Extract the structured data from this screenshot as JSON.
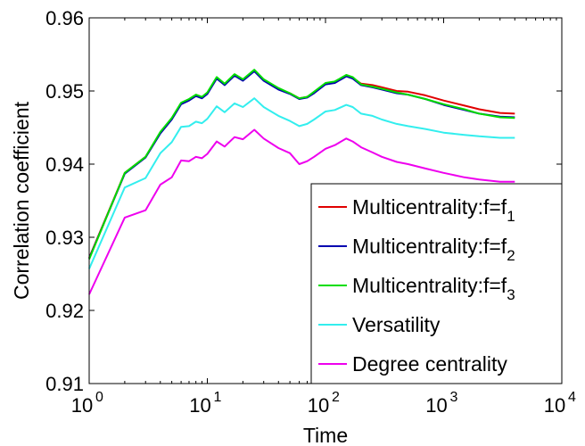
{
  "chart_data": {
    "type": "line",
    "title": "",
    "xlabel": "Time",
    "ylabel": "Correlation coefficient",
    "x_scale": "log",
    "xlim": [
      1,
      10000
    ],
    "ylim": [
      0.91,
      0.96
    ],
    "x_ticks": [
      {
        "value": 1,
        "base": "10",
        "exp": "0"
      },
      {
        "value": 10,
        "base": "10",
        "exp": "1"
      },
      {
        "value": 100,
        "base": "10",
        "exp": "2"
      },
      {
        "value": 1000,
        "base": "10",
        "exp": "3"
      },
      {
        "value": 10000,
        "base": "10",
        "exp": "4"
      }
    ],
    "y_ticks": [
      "0.91",
      "0.92",
      "0.93",
      "0.94",
      "0.95",
      "0.96"
    ],
    "grid": false,
    "legend_position": "bottom-right",
    "series": [
      {
        "name": "Multicentrality:f=f",
        "subscript": "1",
        "color": "#e00000",
        "points": [
          [
            1,
            0.9272
          ],
          [
            2,
            0.9388
          ],
          [
            3,
            0.941
          ],
          [
            4,
            0.9443
          ],
          [
            5,
            0.9462
          ],
          [
            6,
            0.9483
          ],
          [
            7,
            0.9488
          ],
          [
            8,
            0.9494
          ],
          [
            9,
            0.9491
          ],
          [
            10,
            0.9497
          ],
          [
            12,
            0.9518
          ],
          [
            14,
            0.9509
          ],
          [
            17,
            0.9522
          ],
          [
            20,
            0.9515
          ],
          [
            25,
            0.9528
          ],
          [
            30,
            0.9515
          ],
          [
            40,
            0.9503
          ],
          [
            50,
            0.9497
          ],
          [
            60,
            0.949
          ],
          [
            70,
            0.9492
          ],
          [
            80,
            0.9498
          ],
          [
            100,
            0.951
          ],
          [
            120,
            0.9512
          ],
          [
            150,
            0.9521
          ],
          [
            170,
            0.9518
          ],
          [
            200,
            0.951
          ],
          [
            250,
            0.9508
          ],
          [
            300,
            0.9505
          ],
          [
            400,
            0.95
          ],
          [
            500,
            0.9499
          ],
          [
            700,
            0.9494
          ],
          [
            1000,
            0.9487
          ],
          [
            1500,
            0.948
          ],
          [
            2000,
            0.9475
          ],
          [
            3000,
            0.947
          ],
          [
            4000,
            0.9469
          ]
        ]
      },
      {
        "name": "Multicentrality:f=f",
        "subscript": "2",
        "color": "#0000b0",
        "points": [
          [
            1,
            0.9271
          ],
          [
            2,
            0.9387
          ],
          [
            3,
            0.9409
          ],
          [
            4,
            0.9442
          ],
          [
            5,
            0.9461
          ],
          [
            6,
            0.9482
          ],
          [
            7,
            0.9487
          ],
          [
            8,
            0.9493
          ],
          [
            9,
            0.949
          ],
          [
            10,
            0.9496
          ],
          [
            12,
            0.9517
          ],
          [
            14,
            0.9508
          ],
          [
            17,
            0.9521
          ],
          [
            20,
            0.9514
          ],
          [
            25,
            0.9527
          ],
          [
            30,
            0.9514
          ],
          [
            40,
            0.9502
          ],
          [
            50,
            0.9496
          ],
          [
            60,
            0.9489
          ],
          [
            70,
            0.9491
          ],
          [
            80,
            0.9497
          ],
          [
            100,
            0.9509
          ],
          [
            120,
            0.9511
          ],
          [
            150,
            0.952
          ],
          [
            170,
            0.9517
          ],
          [
            200,
            0.9508
          ],
          [
            250,
            0.9505
          ],
          [
            300,
            0.9502
          ],
          [
            400,
            0.9497
          ],
          [
            500,
            0.9495
          ],
          [
            700,
            0.9489
          ],
          [
            1000,
            0.9481
          ],
          [
            1500,
            0.9474
          ],
          [
            2000,
            0.9469
          ],
          [
            3000,
            0.9465
          ],
          [
            4000,
            0.9464
          ]
        ]
      },
      {
        "name": "Multicentrality:f=f",
        "subscript": "3",
        "color": "#00dd00",
        "points": [
          [
            1,
            0.927
          ],
          [
            2,
            0.9388
          ],
          [
            3,
            0.941
          ],
          [
            4,
            0.9444
          ],
          [
            5,
            0.9463
          ],
          [
            6,
            0.9484
          ],
          [
            7,
            0.9489
          ],
          [
            8,
            0.9495
          ],
          [
            9,
            0.9492
          ],
          [
            10,
            0.9498
          ],
          [
            12,
            0.9519
          ],
          [
            14,
            0.951
          ],
          [
            17,
            0.9523
          ],
          [
            20,
            0.9516
          ],
          [
            25,
            0.9529
          ],
          [
            30,
            0.9516
          ],
          [
            40,
            0.9504
          ],
          [
            50,
            0.9497
          ],
          [
            60,
            0.949
          ],
          [
            70,
            0.9492
          ],
          [
            80,
            0.9499
          ],
          [
            100,
            0.9511
          ],
          [
            120,
            0.9513
          ],
          [
            150,
            0.9522
          ],
          [
            170,
            0.9519
          ],
          [
            200,
            0.9509
          ],
          [
            250,
            0.9506
          ],
          [
            300,
            0.9503
          ],
          [
            400,
            0.9498
          ],
          [
            500,
            0.9495
          ],
          [
            700,
            0.9489
          ],
          [
            1000,
            0.9482
          ],
          [
            1500,
            0.9475
          ],
          [
            2000,
            0.9469
          ],
          [
            3000,
            0.9464
          ],
          [
            4000,
            0.9463
          ]
        ]
      },
      {
        "name": "Versatility",
        "subscript": "",
        "color": "#33eeee",
        "points": [
          [
            1,
            0.9257
          ],
          [
            2,
            0.9368
          ],
          [
            3,
            0.9381
          ],
          [
            4,
            0.9415
          ],
          [
            5,
            0.943
          ],
          [
            6,
            0.9451
          ],
          [
            7,
            0.9452
          ],
          [
            8,
            0.9458
          ],
          [
            9,
            0.9456
          ],
          [
            10,
            0.9462
          ],
          [
            12,
            0.9479
          ],
          [
            14,
            0.9471
          ],
          [
            17,
            0.9483
          ],
          [
            20,
            0.9478
          ],
          [
            25,
            0.949
          ],
          [
            30,
            0.9478
          ],
          [
            40,
            0.9466
          ],
          [
            50,
            0.9459
          ],
          [
            60,
            0.9452
          ],
          [
            70,
            0.9455
          ],
          [
            80,
            0.9461
          ],
          [
            100,
            0.9472
          ],
          [
            120,
            0.9474
          ],
          [
            150,
            0.9481
          ],
          [
            170,
            0.9478
          ],
          [
            200,
            0.9469
          ],
          [
            250,
            0.9466
          ],
          [
            300,
            0.9461
          ],
          [
            400,
            0.9455
          ],
          [
            500,
            0.9452
          ],
          [
            700,
            0.9448
          ],
          [
            1000,
            0.9443
          ],
          [
            1500,
            0.944
          ],
          [
            2000,
            0.9438
          ],
          [
            3000,
            0.9436
          ],
          [
            4000,
            0.9436
          ]
        ]
      },
      {
        "name": "Degree centrality",
        "subscript": "",
        "color": "#ee00ee",
        "points": [
          [
            1,
            0.9222
          ],
          [
            2,
            0.9327
          ],
          [
            3,
            0.9337
          ],
          [
            4,
            0.9372
          ],
          [
            5,
            0.9382
          ],
          [
            6,
            0.9405
          ],
          [
            7,
            0.9404
          ],
          [
            8,
            0.941
          ],
          [
            9,
            0.9408
          ],
          [
            10,
            0.9414
          ],
          [
            12,
            0.9431
          ],
          [
            14,
            0.9424
          ],
          [
            17,
            0.9437
          ],
          [
            20,
            0.9434
          ],
          [
            25,
            0.9447
          ],
          [
            30,
            0.9435
          ],
          [
            40,
            0.9422
          ],
          [
            50,
            0.9415
          ],
          [
            60,
            0.94
          ],
          [
            70,
            0.9404
          ],
          [
            80,
            0.941
          ],
          [
            100,
            0.9421
          ],
          [
            120,
            0.9426
          ],
          [
            150,
            0.9435
          ],
          [
            170,
            0.9431
          ],
          [
            200,
            0.9423
          ],
          [
            250,
            0.9416
          ],
          [
            300,
            0.941
          ],
          [
            400,
            0.9403
          ],
          [
            500,
            0.94
          ],
          [
            700,
            0.9394
          ],
          [
            1000,
            0.9388
          ],
          [
            1500,
            0.9382
          ],
          [
            2000,
            0.9379
          ],
          [
            3000,
            0.9376
          ],
          [
            4000,
            0.9376
          ]
        ]
      }
    ]
  }
}
